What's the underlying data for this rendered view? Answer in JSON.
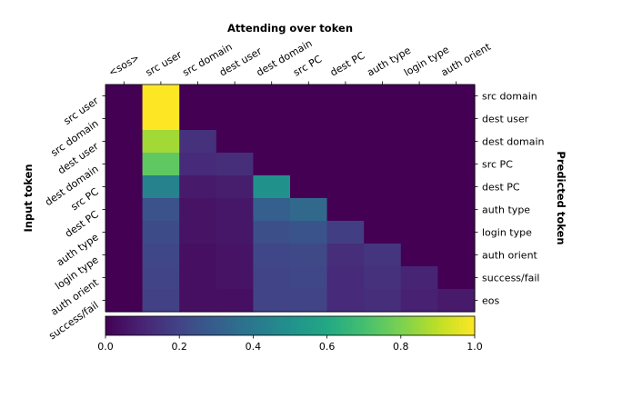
{
  "chart_data": {
    "type": "heatmap",
    "title": "Attending over token",
    "xlabel": "Attending over token",
    "ylabel_left": "Input token",
    "ylabel_right": "Predicted token",
    "x_categories": [
      "<sos>",
      "src user",
      "src domain",
      "dest user",
      "dest domain",
      "src PC",
      "dest PC",
      "auth type",
      "login type",
      "auth orient"
    ],
    "y_left_categories": [
      "src user",
      "src domain",
      "dest user",
      "dest domain",
      "src PC",
      "dest PC",
      "auth type",
      "login type",
      "auth orient",
      "success/fail"
    ],
    "y_right_categories": [
      "src domain",
      "dest user",
      "dest domain",
      "src PC",
      "dest PC",
      "auth type",
      "login type",
      "auth orient",
      "success/fail",
      "eos"
    ],
    "values": [
      [
        0.0,
        1.0,
        0.0,
        0.0,
        0.0,
        0.0,
        0.0,
        0.0,
        0.0,
        0.0
      ],
      [
        0.0,
        1.0,
        0.0,
        0.0,
        0.0,
        0.0,
        0.0,
        0.0,
        0.0,
        0.0
      ],
      [
        0.0,
        0.86,
        0.14,
        0.0,
        0.0,
        0.0,
        0.0,
        0.0,
        0.0,
        0.0
      ],
      [
        0.0,
        0.75,
        0.12,
        0.13,
        0.0,
        0.0,
        0.0,
        0.0,
        0.0,
        0.0
      ],
      [
        0.0,
        0.44,
        0.07,
        0.08,
        0.5,
        0.0,
        0.0,
        0.0,
        0.0,
        0.0
      ],
      [
        0.0,
        0.25,
        0.05,
        0.06,
        0.3,
        0.34,
        0.0,
        0.0,
        0.0,
        0.0
      ],
      [
        0.0,
        0.23,
        0.05,
        0.06,
        0.24,
        0.26,
        0.18,
        0.0,
        0.0,
        0.0
      ],
      [
        0.0,
        0.21,
        0.04,
        0.05,
        0.21,
        0.22,
        0.13,
        0.15,
        0.0,
        0.0
      ],
      [
        0.0,
        0.2,
        0.04,
        0.05,
        0.2,
        0.21,
        0.12,
        0.14,
        0.1,
        0.0
      ],
      [
        0.0,
        0.19,
        0.04,
        0.04,
        0.2,
        0.2,
        0.12,
        0.13,
        0.09,
        0.07
      ]
    ],
    "colorbar": {
      "min": 0.0,
      "max": 1.0,
      "ticks": [
        "0.0",
        "0.2",
        "0.4",
        "0.6",
        "0.8",
        "1.0"
      ],
      "colormap": "viridis"
    }
  }
}
